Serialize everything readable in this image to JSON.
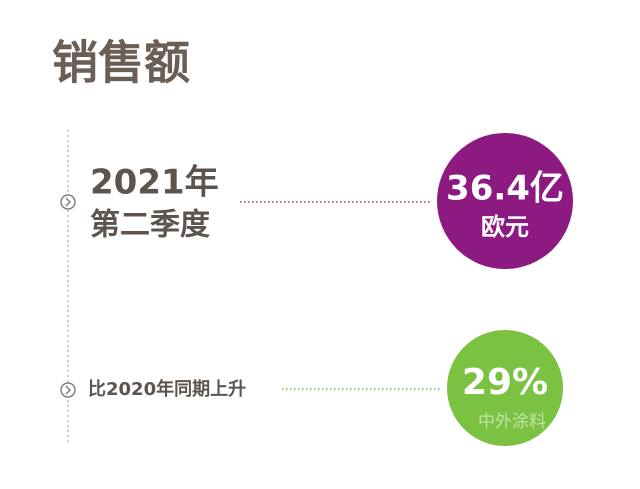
{
  "title": "销售额",
  "items": [
    {
      "period": [
        "2021年",
        "第二季度"
      ],
      "value": "36.4亿",
      "unit": "欧元"
    },
    {
      "label": "比2020年同期上升",
      "value": "29%"
    }
  ],
  "watermark": "中外涂料"
}
